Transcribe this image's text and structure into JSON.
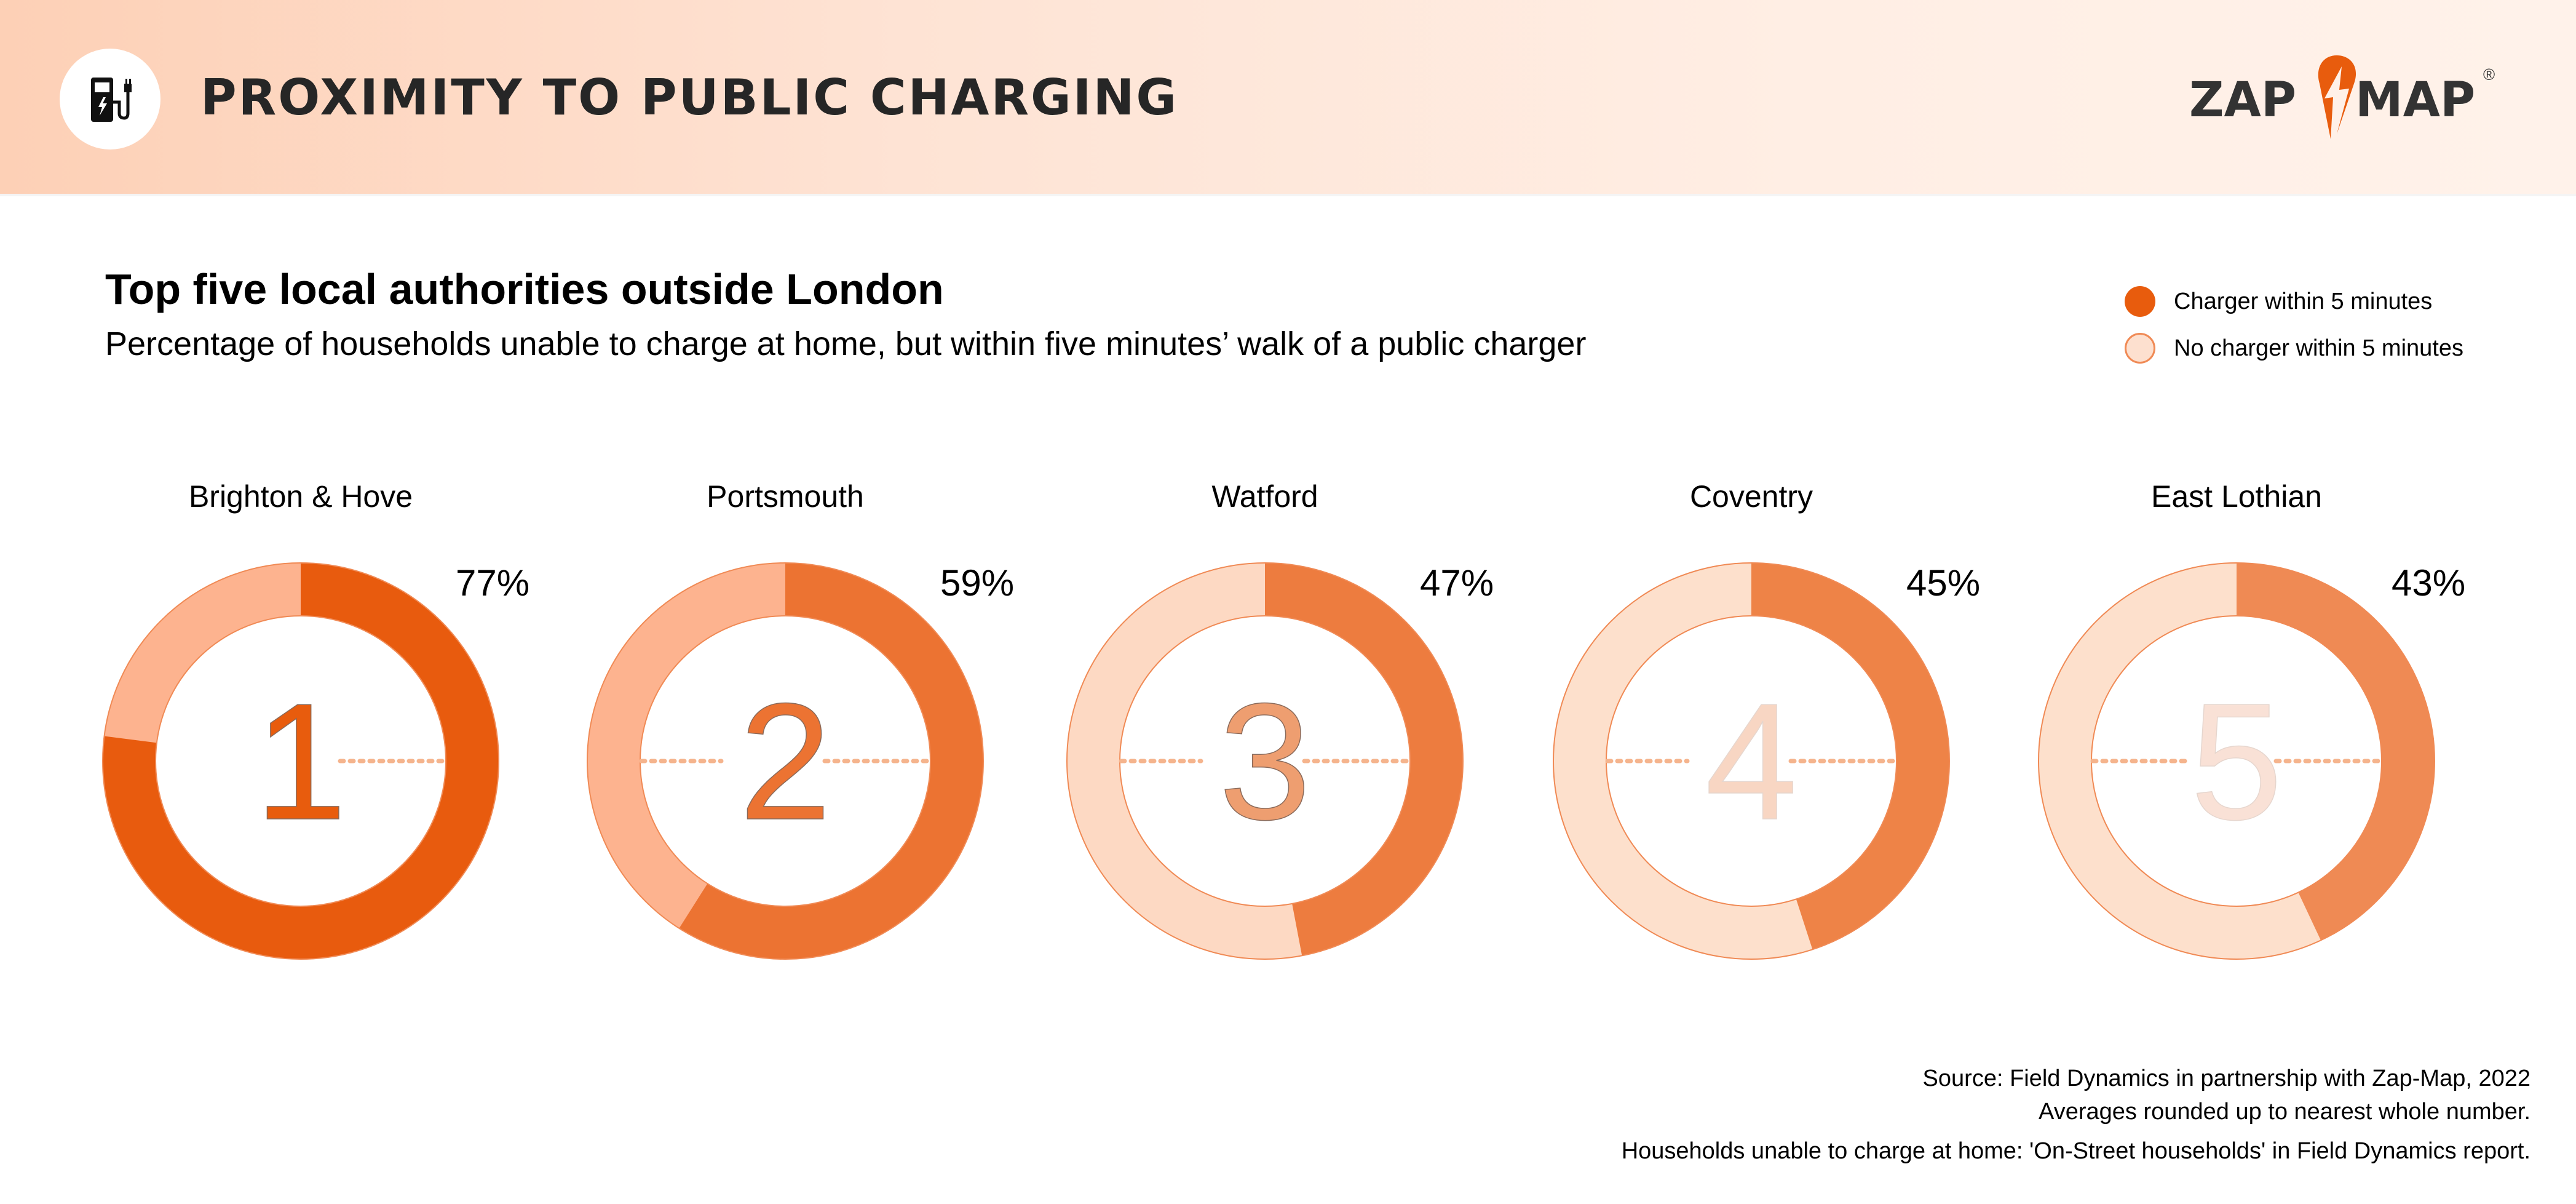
{
  "header": {
    "title": "PROXIMITY TO PUBLIC CHARGING",
    "icon": "ev-charger-icon",
    "logo_text_left": "ZAP",
    "logo_text_right": "MAP",
    "logo_mark": "®"
  },
  "heading": "Top five local authorities outside London",
  "subheading": "Percentage of households unable to charge at home, but within five minutes’ walk of a public charger",
  "legend": [
    {
      "label": "Charger within 5 minutes",
      "color": "#e85c0d"
    },
    {
      "label": "No charger within 5 minutes",
      "color": "#fde0cf"
    }
  ],
  "chart_data": {
    "type": "donut",
    "categories": [
      "Brighton & Hove",
      "Portsmouth",
      "Watford",
      "Coventry",
      "East Lothian"
    ],
    "ranks": [
      "1",
      "2",
      "3",
      "4",
      "5"
    ],
    "values": [
      77,
      59,
      47,
      45,
      43
    ],
    "labels": [
      "77%",
      "59%",
      "47%",
      "45%",
      "43%"
    ],
    "unit": "%",
    "series": [
      {
        "name": "Charger within 5 minutes",
        "colors": [
          "#e85b0e",
          "#ec7332",
          "#ed7c3f",
          "#ee8347",
          "#ef8a54"
        ]
      },
      {
        "name": "No charger within 5 minutes",
        "colors": [
          "#fdb38f",
          "#fdb38f",
          "#fdd9c3",
          "#fde0cc",
          "#fde0cc"
        ]
      }
    ],
    "rank_colors": [
      "#e85c0d",
      "#ec7332",
      "#ee9e70",
      "#f8d6c3",
      "#f9e1d6"
    ]
  },
  "footer": {
    "source": "Source: Field Dynamics in partnership with Zap-Map, 2022",
    "note": "Averages rounded up to nearest whole number.",
    "definition": "Households unable to charge at home: 'On-Street households' in Field Dynamics report."
  }
}
